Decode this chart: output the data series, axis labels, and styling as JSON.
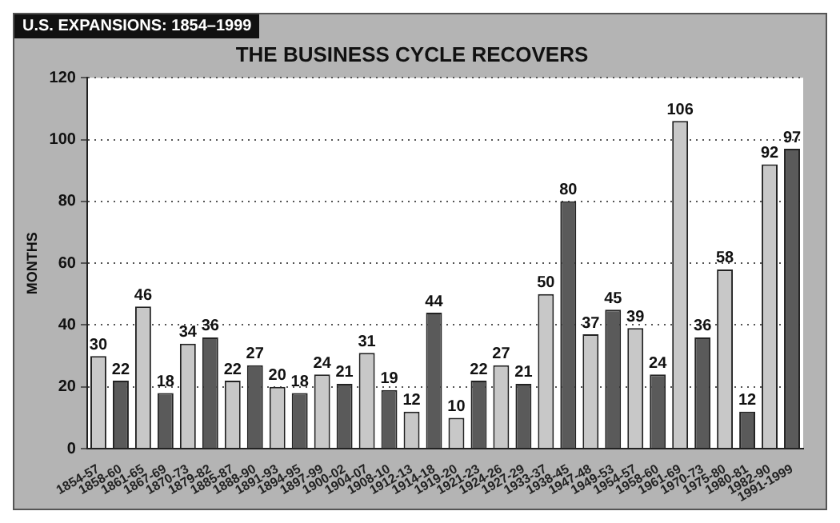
{
  "chart_data": {
    "type": "bar",
    "title": "THE BUSINESS CYCLE RECOVERS",
    "subtitle": "U.S. EXPANSIONS: 1854–1999",
    "ylabel": "MONTHS",
    "categories": [
      "1854-57",
      "1858-60",
      "1861-65",
      "1867-69",
      "1870-73",
      "1879-82",
      "1885-87",
      "1888-90",
      "1891-93",
      "1894-95",
      "1897-99",
      "1900-02",
      "1904-07",
      "1908-10",
      "1912-13",
      "1914-18",
      "1919-20",
      "1921-23",
      "1924-26",
      "1927-29",
      "1933-37",
      "1938-45",
      "1947-48",
      "1949-53",
      "1954-57",
      "1958-60",
      "1961-69",
      "1970-73",
      "1975-80",
      "1980-81",
      "1982-90",
      "1991-1999"
    ],
    "values": [
      30,
      22,
      46,
      18,
      34,
      36,
      22,
      27,
      20,
      18,
      24,
      21,
      31,
      19,
      12,
      44,
      10,
      22,
      27,
      21,
      50,
      80,
      37,
      45,
      39,
      24,
      106,
      36,
      58,
      12,
      92,
      97
    ],
    "colors": [
      "#c8c8c8",
      "#5a5a5a",
      "#c8c8c8",
      "#5a5a5a",
      "#c8c8c8",
      "#5a5a5a",
      "#c8c8c8",
      "#5a5a5a",
      "#c8c8c8",
      "#5a5a5a",
      "#c8c8c8",
      "#5a5a5a",
      "#c8c8c8",
      "#5a5a5a",
      "#c8c8c8",
      "#5a5a5a",
      "#c8c8c8",
      "#5a5a5a",
      "#c8c8c8",
      "#5a5a5a",
      "#c8c8c8",
      "#5a5a5a",
      "#c8c8c8",
      "#5a5a5a",
      "#c8c8c8",
      "#5a5a5a",
      "#c8c8c8",
      "#5a5a5a",
      "#c8c8c8",
      "#5a5a5a",
      "#c8c8c8",
      "#5a5a5a"
    ],
    "ylim": [
      0,
      120
    ],
    "yticks": [
      0,
      20,
      40,
      60,
      80,
      100,
      120
    ],
    "grid": "y",
    "data_labels": true,
    "legend": false
  }
}
